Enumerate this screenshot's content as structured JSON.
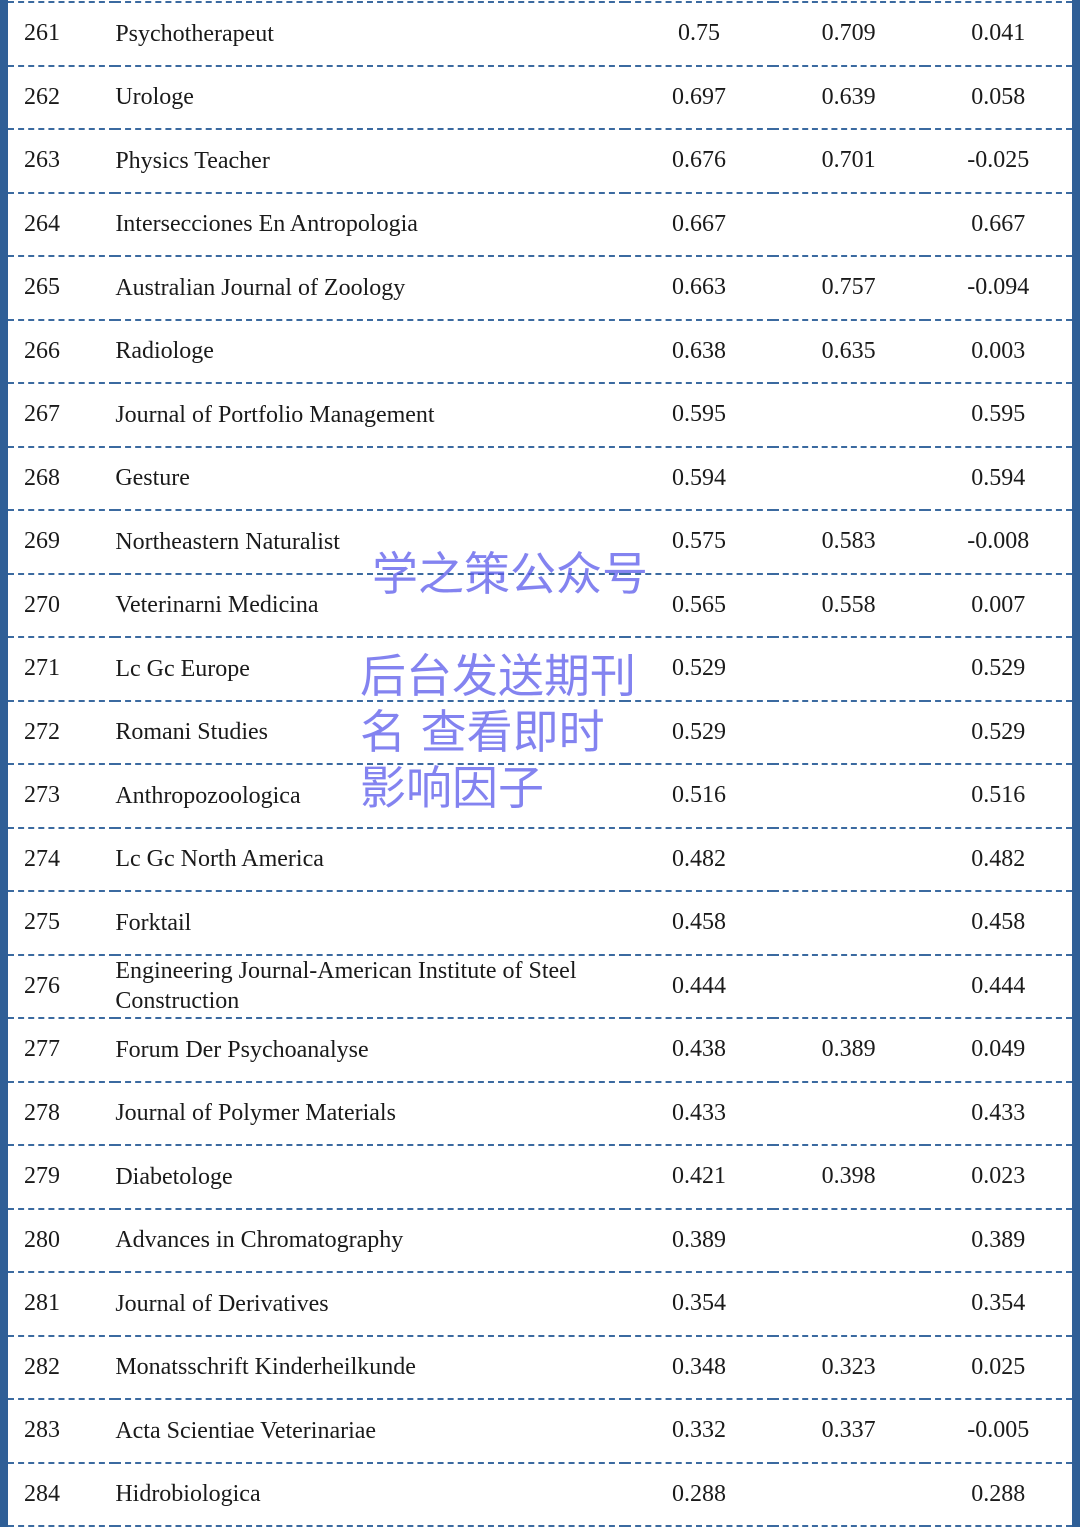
{
  "rows": [
    {
      "rank": "261",
      "name": "Psychotherapeut",
      "a": "0.75",
      "b": "0.709",
      "c": "0.041"
    },
    {
      "rank": "262",
      "name": "Urologe",
      "a": "0.697",
      "b": "0.639",
      "c": "0.058"
    },
    {
      "rank": "263",
      "name": "Physics Teacher",
      "a": "0.676",
      "b": "0.701",
      "c": "-0.025"
    },
    {
      "rank": "264",
      "name": "Intersecciones En Antropologia",
      "a": "0.667",
      "b": "",
      "c": "0.667"
    },
    {
      "rank": "265",
      "name": "Australian Journal of Zoology",
      "a": "0.663",
      "b": "0.757",
      "c": "-0.094"
    },
    {
      "rank": "266",
      "name": "Radiologe",
      "a": "0.638",
      "b": "0.635",
      "c": "0.003"
    },
    {
      "rank": "267",
      "name": "Journal of Portfolio Management",
      "a": "0.595",
      "b": "",
      "c": "0.595"
    },
    {
      "rank": "268",
      "name": "Gesture",
      "a": "0.594",
      "b": "",
      "c": "0.594"
    },
    {
      "rank": "269",
      "name": "Northeastern Naturalist",
      "a": "0.575",
      "b": "0.583",
      "c": "-0.008"
    },
    {
      "rank": "270",
      "name": "Veterinarni Medicina",
      "a": "0.565",
      "b": "0.558",
      "c": "0.007"
    },
    {
      "rank": "271",
      "name": "Lc Gc Europe",
      "a": "0.529",
      "b": "",
      "c": "0.529"
    },
    {
      "rank": "272",
      "name": "Romani Studies",
      "a": "0.529",
      "b": "",
      "c": "0.529"
    },
    {
      "rank": "273",
      "name": "Anthropozoologica",
      "a": "0.516",
      "b": "",
      "c": "0.516"
    },
    {
      "rank": "274",
      "name": "Lc Gc North America",
      "a": "0.482",
      "b": "",
      "c": "0.482"
    },
    {
      "rank": "275",
      "name": "Forktail",
      "a": "0.458",
      "b": "",
      "c": "0.458"
    },
    {
      "rank": "276",
      "name": "Engineering Journal-American Institute of Steel Construction",
      "a": "0.444",
      "b": "",
      "c": "0.444"
    },
    {
      "rank": "277",
      "name": "Forum Der Psychoanalyse",
      "a": "0.438",
      "b": "0.389",
      "c": "0.049"
    },
    {
      "rank": "278",
      "name": "Journal of Polymer Materials",
      "a": "0.433",
      "b": "",
      "c": "0.433"
    },
    {
      "rank": "279",
      "name": "Diabetologe",
      "a": "0.421",
      "b": "0.398",
      "c": "0.023"
    },
    {
      "rank": "280",
      "name": "Advances in Chromatography",
      "a": "0.389",
      "b": "",
      "c": "0.389"
    },
    {
      "rank": "281",
      "name": "Journal of Derivatives",
      "a": "0.354",
      "b": "",
      "c": "0.354"
    },
    {
      "rank": "282",
      "name": "Monatsschrift Kinderheilkunde",
      "a": "0.348",
      "b": "0.323",
      "c": "0.025"
    },
    {
      "rank": "283",
      "name": "Acta Scientiae Veterinariae",
      "a": "0.332",
      "b": "0.337",
      "c": "-0.005"
    },
    {
      "rank": "284",
      "name": "Hidrobiologica",
      "a": "0.288",
      "b": "",
      "c": "0.288"
    }
  ],
  "watermarks": {
    "top": "学之策公众号",
    "bottom": "后台发送期刊名 查看即时影响因子"
  },
  "colors": {
    "border": "#2f5f97",
    "watermark": "#5a5aeb"
  }
}
